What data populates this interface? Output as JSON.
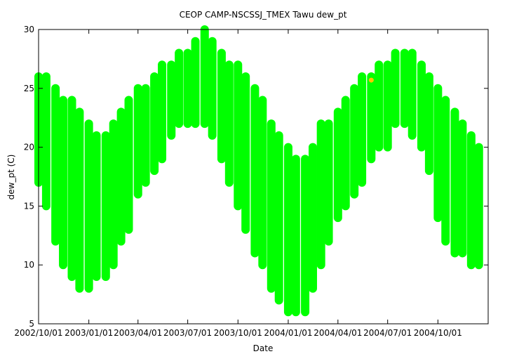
{
  "chart_data": {
    "type": "scatter",
    "title": "CEOP CAMP-NSCSSJ_TMEX Tawu  dew_pt",
    "xlabel": "Date",
    "ylabel": "dew_pt (C)",
    "ylim": [
      5,
      30
    ],
    "xlim": [
      "2002/10/01",
      "2005/01/01"
    ],
    "yticks": [
      5,
      10,
      15,
      20,
      25,
      30
    ],
    "xticks": [
      "2002/10/01",
      "2003/01/01",
      "2003/04/01",
      "2003/07/01",
      "2003/10/01",
      "2004/01/01",
      "2004/04/01",
      "2004/07/01",
      "2004/10/01"
    ],
    "grid": false,
    "legend": "none",
    "series": [
      {
        "color": "#00ff00",
        "x": [
          "2002/10/01",
          "2002/10/15",
          "2002/11/01",
          "2002/11/15",
          "2002/12/01",
          "2002/12/15",
          "2003/01/01",
          "2003/01/15",
          "2003/02/01",
          "2003/02/15",
          "2003/03/01",
          "2003/03/15",
          "2003/04/01",
          "2003/04/15",
          "2003/05/01",
          "2003/05/15",
          "2003/06/01",
          "2003/06/15",
          "2003/07/01",
          "2003/07/15",
          "2003/08/01",
          "2003/08/15",
          "2003/09/01",
          "2003/09/15",
          "2003/10/01",
          "2003/10/15",
          "2003/11/01",
          "2003/11/15",
          "2003/12/01",
          "2003/12/15",
          "2004/01/01",
          "2004/01/15",
          "2004/02/01",
          "2004/02/15",
          "2004/03/01",
          "2004/03/15",
          "2004/04/01",
          "2004/04/15",
          "2004/05/01",
          "2004/05/15",
          "2004/06/01",
          "2004/06/15",
          "2004/07/01",
          "2004/07/15",
          "2004/08/01",
          "2004/08/15",
          "2004/09/01",
          "2004/09/15",
          "2004/10/01",
          "2004/10/15",
          "2004/11/01",
          "2004/11/15",
          "2004/12/01",
          "2004/12/15"
        ],
        "y": [
          22,
          21,
          19,
          18,
          16,
          15,
          15,
          14,
          14,
          15,
          17,
          18,
          20,
          21,
          22,
          23,
          24,
          25,
          25,
          25,
          26,
          25,
          24,
          22,
          21,
          19,
          17,
          16,
          14,
          13,
          12,
          11,
          11,
          13,
          15,
          17,
          18,
          19,
          20,
          21,
          23,
          24,
          24,
          25,
          25,
          25,
          25,
          24,
          21,
          19,
          17,
          16,
          15,
          15
        ],
        "y_low": [
          17,
          15,
          12,
          10,
          9,
          8,
          8,
          9,
          9,
          10,
          12,
          13,
          16,
          17,
          18,
          19,
          21,
          22,
          22,
          22,
          22,
          21,
          19,
          17,
          15,
          13,
          11,
          10,
          8,
          7,
          6,
          6,
          6,
          8,
          10,
          12,
          14,
          15,
          16,
          17,
          19,
          20,
          20,
          22,
          22,
          21,
          20,
          18,
          14,
          12,
          11,
          11,
          10,
          10
        ],
        "y_high": [
          26,
          26,
          25,
          24,
          24,
          23,
          22,
          21,
          21,
          22,
          23,
          24,
          25,
          25,
          26,
          27,
          27,
          28,
          28,
          29,
          30,
          29,
          28,
          27,
          27,
          26,
          25,
          24,
          22,
          21,
          20,
          19,
          19,
          20,
          22,
          22,
          23,
          24,
          25,
          26,
          26,
          27,
          27,
          28,
          28,
          28,
          27,
          26,
          25,
          24,
          23,
          22,
          21,
          20
        ]
      },
      {
        "color": "#ffc800",
        "x": [
          "2004/06/01"
        ],
        "y": [
          25.7
        ]
      }
    ]
  }
}
